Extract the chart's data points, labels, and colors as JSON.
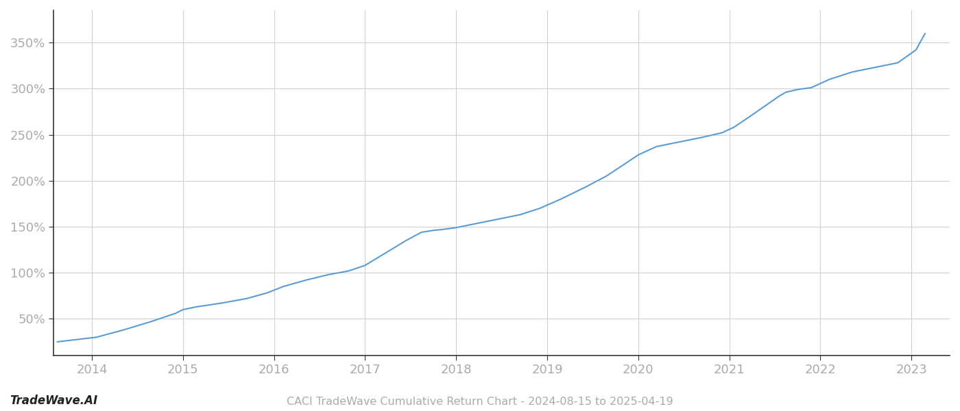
{
  "title": "CACI TradeWave Cumulative Return Chart - 2024-08-15 to 2025-04-19",
  "watermark": "TradeWave.AI",
  "line_color": "#5b9bd5",
  "background_color": "#ffffff",
  "grid_color": "#d0d0d0",
  "x_years": [
    2014,
    2015,
    2016,
    2017,
    2018,
    2019,
    2020,
    2021,
    2022,
    2023
  ],
  "y_ticks": [
    50,
    100,
    150,
    200,
    250,
    300,
    350
  ],
  "xlim": [
    2013.58,
    2023.42
  ],
  "ylim": [
    10,
    385
  ],
  "data_x": [
    2013.62,
    2014.05,
    2014.35,
    2014.65,
    2014.92,
    2015.0,
    2015.15,
    2015.42,
    2015.7,
    2015.92,
    2016.1,
    2016.35,
    2016.6,
    2016.82,
    2017.0,
    2017.2,
    2017.45,
    2017.62,
    2017.75,
    2017.85,
    2018.0,
    2018.1,
    2018.2,
    2018.45,
    2018.7,
    2018.92,
    2019.15,
    2019.42,
    2019.65,
    2019.85,
    2020.0,
    2020.2,
    2020.45,
    2020.7,
    2020.92,
    2021.05,
    2021.2,
    2021.42,
    2021.55,
    2021.62,
    2021.75,
    2021.9,
    2022.1,
    2022.35,
    2022.6,
    2022.85,
    2023.05,
    2023.15
  ],
  "data_y": [
    25,
    30,
    38,
    47,
    56,
    60,
    63,
    67,
    72,
    78,
    85,
    92,
    98,
    102,
    108,
    120,
    135,
    144,
    146,
    147,
    149,
    151,
    153,
    158,
    163,
    170,
    180,
    193,
    205,
    218,
    228,
    237,
    242,
    247,
    252,
    258,
    268,
    283,
    292,
    296,
    299,
    301,
    310,
    318,
    323,
    328,
    342,
    360
  ]
}
